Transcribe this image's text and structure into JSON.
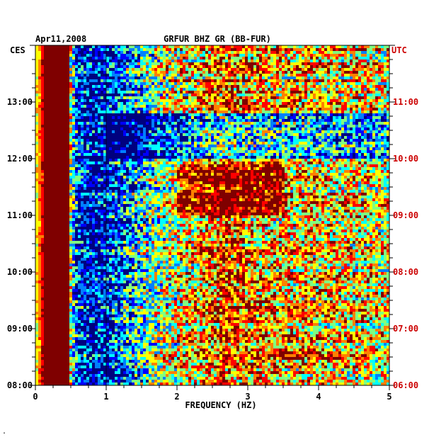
{
  "chart_data": {
    "type": "heatmap",
    "title": "GRFUR BHZ GR (BB-FUR)",
    "date": "Apr11,2008",
    "xlabel": "FREQUENCY (HZ)",
    "left_axis_title": "CES",
    "right_axis_title": "UTC",
    "xlim": [
      0,
      5
    ],
    "x_ticks": [
      "0",
      "1",
      "2",
      "3",
      "4",
      "5"
    ],
    "left_time_range_hours": [
      8,
      14
    ],
    "left_ticks": [
      "08:00",
      "09:00",
      "10:00",
      "11:00",
      "12:00",
      "13:00"
    ],
    "right_ticks": [
      "06:00",
      "07:00",
      "08:00",
      "09:00",
      "10:00",
      "11:00"
    ],
    "colorscale": [
      "#00007f",
      "#0000ff",
      "#0080ff",
      "#00ffff",
      "#80ff80",
      "#ffff00",
      "#ff8000",
      "#ff0000",
      "#7f0000"
    ],
    "frequency_profile": [
      {
        "hz": 0.0,
        "level": 0.55
      },
      {
        "hz": 0.1,
        "level": 0.85
      },
      {
        "hz": 0.2,
        "level": 1.0
      },
      {
        "hz": 0.4,
        "level": 1.0
      },
      {
        "hz": 0.5,
        "level": 0.55
      },
      {
        "hz": 0.6,
        "level": 0.2
      },
      {
        "hz": 0.8,
        "level": 0.12
      },
      {
        "hz": 1.0,
        "level": 0.15
      },
      {
        "hz": 1.3,
        "level": 0.3
      },
      {
        "hz": 1.7,
        "level": 0.5
      },
      {
        "hz": 2.2,
        "level": 0.65
      },
      {
        "hz": 2.7,
        "level": 0.78
      },
      {
        "hz": 3.0,
        "level": 0.72
      },
      {
        "hz": 4.0,
        "level": 0.66
      },
      {
        "hz": 5.0,
        "level": 0.62
      }
    ],
    "quiet_band": {
      "hours": [
        12.0,
        12.8
      ],
      "freq_hz": [
        1.0,
        5.0
      ]
    },
    "active_band": {
      "hours": [
        11.0,
        11.9
      ],
      "freq_hz": [
        2.0,
        3.5
      ]
    }
  },
  "corner_mark": "."
}
